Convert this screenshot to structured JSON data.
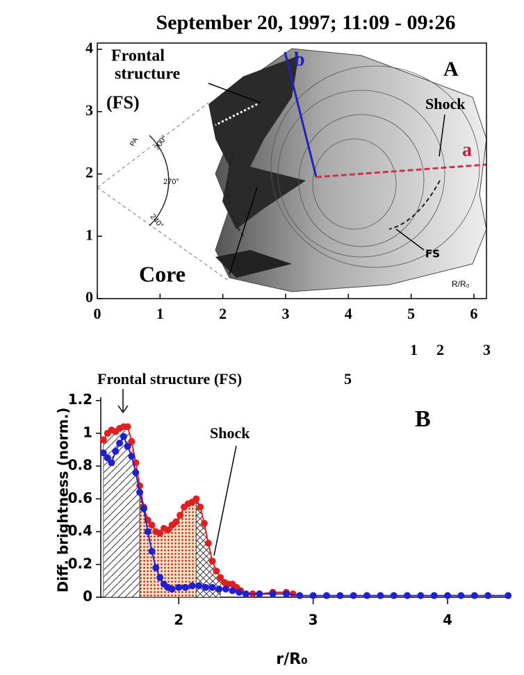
{
  "chart_data": [
    {
      "type": "image",
      "title": "September 20, 1997; 11:09 - 09:26",
      "xlim": [
        0,
        6.2
      ],
      "ylim": [
        0,
        4.1
      ],
      "xticks": [
        0,
        1,
        2,
        3,
        4,
        5,
        6
      ],
      "yticks": [
        0,
        1,
        2,
        3,
        4
      ],
      "annotations": [
        "Frontal",
        "structure",
        "(FS)",
        "b",
        "A",
        "Shock",
        "a",
        "PA",
        "300°",
        "270°",
        "240°",
        "Core",
        "FS",
        "R/R₀",
        "1",
        "2",
        "3"
      ]
    },
    {
      "type": "line",
      "xlabel": "r/R₀",
      "ylabel": "Diff. brightness (norm.)",
      "xlim": [
        1.42,
        4.47
      ],
      "ylim": [
        0,
        1.22
      ],
      "xticks": [
        2,
        3,
        4
      ],
      "yticks": [
        0,
        0.2,
        0.4,
        0.6,
        0.8,
        1,
        1.2
      ],
      "annotations": [
        "Frontal structure (FS)",
        "5",
        "B",
        "Shock"
      ],
      "shaded_regions": [
        {
          "xlim": [
            1.44,
            1.71
          ],
          "pattern": "diagonal"
        },
        {
          "xlim": [
            1.71,
            2.13
          ],
          "pattern": "dots"
        },
        {
          "xlim": [
            2.13,
            2.31
          ],
          "pattern": "cross"
        }
      ],
      "series": [
        {
          "color": "#e02020",
          "x": [
            1.44,
            1.47,
            1.5,
            1.53,
            1.56,
            1.59,
            1.62,
            1.65,
            1.68,
            1.71,
            1.74,
            1.77,
            1.8,
            1.83,
            1.86,
            1.89,
            1.92,
            1.95,
            1.98,
            2.01,
            2.04,
            2.07,
            2.1,
            2.13,
            2.16,
            2.19,
            2.22,
            2.25,
            2.28,
            2.31,
            2.34,
            2.37,
            2.4,
            2.43,
            2.46,
            2.5,
            2.55,
            2.6,
            2.7,
            2.8,
            2.85
          ],
          "values": [
            0.96,
            1,
            1.02,
            1.01,
            1.03,
            1.04,
            1.04,
            0.95,
            0.82,
            0.68,
            0.55,
            0.47,
            0.44,
            0.4,
            0.39,
            0.42,
            0.41,
            0.44,
            0.46,
            0.5,
            0.55,
            0.57,
            0.58,
            0.6,
            0.55,
            0.45,
            0.33,
            0.22,
            0.16,
            0.12,
            0.09,
            0.08,
            0.08,
            0.06,
            0.04,
            0.02,
            0.02,
            0.02,
            0.03,
            0.03,
            0.02
          ]
        },
        {
          "color": "#2020d0",
          "x": [
            1.44,
            1.47,
            1.5,
            1.53,
            1.56,
            1.59,
            1.62,
            1.65,
            1.68,
            1.71,
            1.74,
            1.77,
            1.8,
            1.83,
            1.86,
            1.89,
            1.92,
            1.95,
            2,
            2.05,
            2.1,
            2.15,
            2.2,
            2.25,
            2.3,
            2.35,
            2.4,
            2.45,
            2.5,
            2.6,
            2.7,
            2.8,
            2.9,
            3,
            3.1,
            3.2,
            3.3,
            3.4,
            3.5,
            3.6,
            3.7,
            3.8,
            3.9,
            4,
            4.1,
            4.2,
            4.3,
            4.45
          ],
          "values": [
            0.88,
            0.85,
            0.82,
            0.89,
            0.94,
            0.98,
            0.92,
            0.86,
            0.76,
            0.64,
            0.54,
            0.4,
            0.28,
            0.18,
            0.12,
            0.08,
            0.06,
            0.05,
            0.06,
            0.06,
            0.07,
            0.07,
            0.06,
            0.06,
            0.05,
            0.05,
            0.04,
            0.03,
            0.02,
            0.02,
            0.02,
            0.02,
            0.01,
            0.01,
            0.01,
            0.01,
            0.01,
            0.01,
            0.01,
            0.01,
            0.01,
            0.01,
            0.01,
            0.01,
            0.01,
            0.01,
            0.01,
            0.01
          ]
        }
      ]
    }
  ]
}
